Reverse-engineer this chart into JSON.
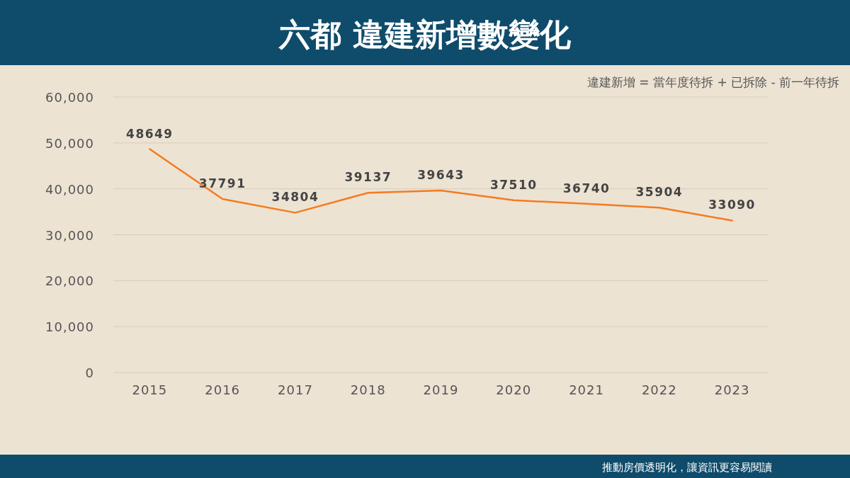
{
  "chart_data": {
    "type": "line",
    "title": "六都 違建新增數變化",
    "subtitle": "違建新增 = 當年度待拆 + 已拆除 - 前一年待拆",
    "annotations": [
      "推動房價透明化，讓資訊更容易閱讀"
    ],
    "categories": [
      "2015",
      "2016",
      "2017",
      "2018",
      "2019",
      "2020",
      "2021",
      "2022",
      "2023"
    ],
    "series": [
      {
        "color": "#f47b20",
        "values": [
          48649,
          37791,
          34804,
          39137,
          39643,
          37510,
          36740,
          35904,
          33090
        ]
      }
    ],
    "ylim": [
      0,
      60000
    ],
    "yticks": [
      0,
      {
        "value": 10000,
        "label": "10,000"
      },
      {
        "value": 20000,
        "label": "20,000"
      },
      {
        "value": 30000,
        "label": "30,000"
      },
      {
        "value": 40000,
        "label": "40,000"
      },
      {
        "value": 50000,
        "label": "50,000"
      },
      {
        "value": 60000,
        "label": "60,000"
      }
    ],
    "grid": "y",
    "data_labels": true
  }
}
